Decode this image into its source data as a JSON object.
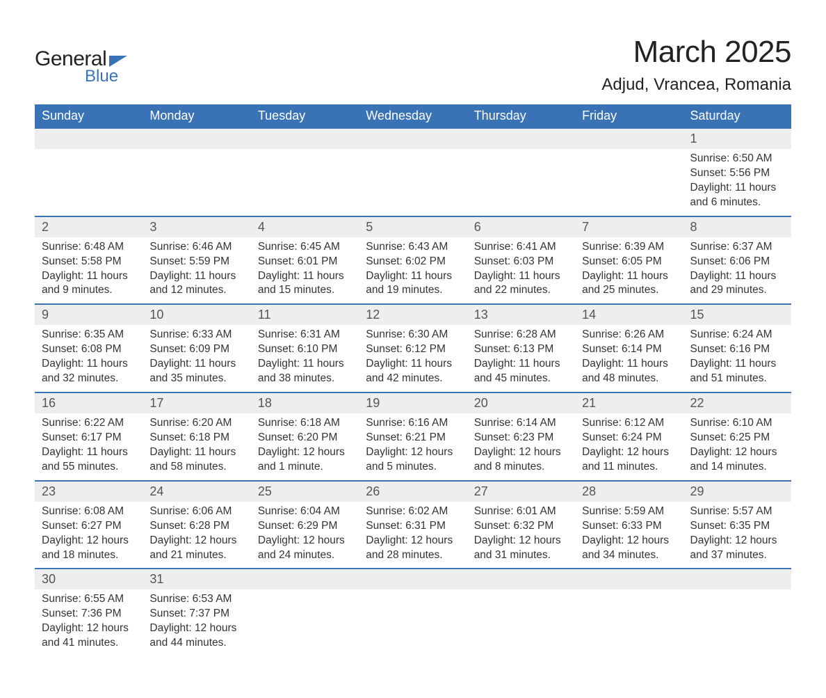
{
  "logo": {
    "word1": "General",
    "word2": "Blue"
  },
  "title": {
    "month": "March 2025",
    "location": "Adjud, Vrancea, Romania"
  },
  "calendar": {
    "type": "table",
    "header_bg": "#3973b6",
    "header_fg": "#ffffff",
    "daynum_bg": "#eeeeee",
    "divider_color": "#3973b6",
    "font_family": "Arial",
    "columns": [
      "Sunday",
      "Monday",
      "Tuesday",
      "Wednesday",
      "Thursday",
      "Friday",
      "Saturday"
    ],
    "weeks": [
      {
        "nums": [
          "",
          "",
          "",
          "",
          "",
          "",
          "1"
        ],
        "cells": [
          "",
          "",
          "",
          "",
          "",
          "",
          "Sunrise: 6:50 AM\nSunset: 5:56 PM\nDaylight: 11 hours and 6 minutes."
        ]
      },
      {
        "nums": [
          "2",
          "3",
          "4",
          "5",
          "6",
          "7",
          "8"
        ],
        "cells": [
          "Sunrise: 6:48 AM\nSunset: 5:58 PM\nDaylight: 11 hours and 9 minutes.",
          "Sunrise: 6:46 AM\nSunset: 5:59 PM\nDaylight: 11 hours and 12 minutes.",
          "Sunrise: 6:45 AM\nSunset: 6:01 PM\nDaylight: 11 hours and 15 minutes.",
          "Sunrise: 6:43 AM\nSunset: 6:02 PM\nDaylight: 11 hours and 19 minutes.",
          "Sunrise: 6:41 AM\nSunset: 6:03 PM\nDaylight: 11 hours and 22 minutes.",
          "Sunrise: 6:39 AM\nSunset: 6:05 PM\nDaylight: 11 hours and 25 minutes.",
          "Sunrise: 6:37 AM\nSunset: 6:06 PM\nDaylight: 11 hours and 29 minutes."
        ]
      },
      {
        "nums": [
          "9",
          "10",
          "11",
          "12",
          "13",
          "14",
          "15"
        ],
        "cells": [
          "Sunrise: 6:35 AM\nSunset: 6:08 PM\nDaylight: 11 hours and 32 minutes.",
          "Sunrise: 6:33 AM\nSunset: 6:09 PM\nDaylight: 11 hours and 35 minutes.",
          "Sunrise: 6:31 AM\nSunset: 6:10 PM\nDaylight: 11 hours and 38 minutes.",
          "Sunrise: 6:30 AM\nSunset: 6:12 PM\nDaylight: 11 hours and 42 minutes.",
          "Sunrise: 6:28 AM\nSunset: 6:13 PM\nDaylight: 11 hours and 45 minutes.",
          "Sunrise: 6:26 AM\nSunset: 6:14 PM\nDaylight: 11 hours and 48 minutes.",
          "Sunrise: 6:24 AM\nSunset: 6:16 PM\nDaylight: 11 hours and 51 minutes."
        ]
      },
      {
        "nums": [
          "16",
          "17",
          "18",
          "19",
          "20",
          "21",
          "22"
        ],
        "cells": [
          "Sunrise: 6:22 AM\nSunset: 6:17 PM\nDaylight: 11 hours and 55 minutes.",
          "Sunrise: 6:20 AM\nSunset: 6:18 PM\nDaylight: 11 hours and 58 minutes.",
          "Sunrise: 6:18 AM\nSunset: 6:20 PM\nDaylight: 12 hours and 1 minute.",
          "Sunrise: 6:16 AM\nSunset: 6:21 PM\nDaylight: 12 hours and 5 minutes.",
          "Sunrise: 6:14 AM\nSunset: 6:23 PM\nDaylight: 12 hours and 8 minutes.",
          "Sunrise: 6:12 AM\nSunset: 6:24 PM\nDaylight: 12 hours and 11 minutes.",
          "Sunrise: 6:10 AM\nSunset: 6:25 PM\nDaylight: 12 hours and 14 minutes."
        ]
      },
      {
        "nums": [
          "23",
          "24",
          "25",
          "26",
          "27",
          "28",
          "29"
        ],
        "cells": [
          "Sunrise: 6:08 AM\nSunset: 6:27 PM\nDaylight: 12 hours and 18 minutes.",
          "Sunrise: 6:06 AM\nSunset: 6:28 PM\nDaylight: 12 hours and 21 minutes.",
          "Sunrise: 6:04 AM\nSunset: 6:29 PM\nDaylight: 12 hours and 24 minutes.",
          "Sunrise: 6:02 AM\nSunset: 6:31 PM\nDaylight: 12 hours and 28 minutes.",
          "Sunrise: 6:01 AM\nSunset: 6:32 PM\nDaylight: 12 hours and 31 minutes.",
          "Sunrise: 5:59 AM\nSunset: 6:33 PM\nDaylight: 12 hours and 34 minutes.",
          "Sunrise: 5:57 AM\nSunset: 6:35 PM\nDaylight: 12 hours and 37 minutes."
        ]
      },
      {
        "nums": [
          "30",
          "31",
          "",
          "",
          "",
          "",
          ""
        ],
        "cells": [
          "Sunrise: 6:55 AM\nSunset: 7:36 PM\nDaylight: 12 hours and 41 minutes.",
          "Sunrise: 6:53 AM\nSunset: 7:37 PM\nDaylight: 12 hours and 44 minutes.",
          "",
          "",
          "",
          "",
          ""
        ]
      }
    ]
  }
}
